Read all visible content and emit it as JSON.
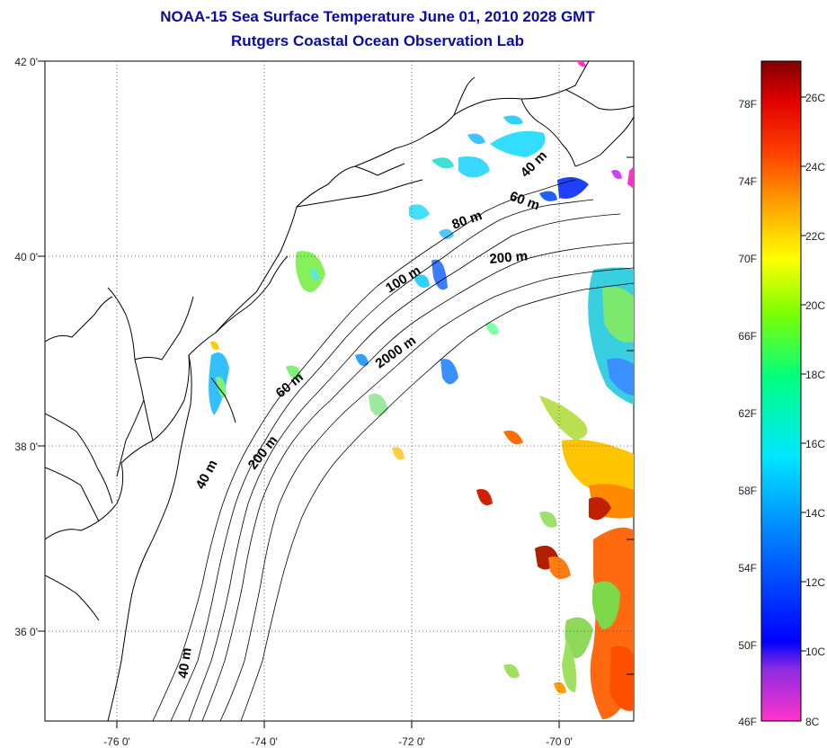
{
  "title": {
    "line1": "NOAA-15 Sea Surface Temperature June 01, 2010 2028 GMT",
    "line2": "Rutgers Coastal Ocean Observation Lab"
  },
  "axes": {
    "lat_labels": [
      "42 0'",
      "40 0'",
      "38 0'",
      "36 0'"
    ],
    "lon_labels": [
      "-76 0'",
      "-74 0'",
      "-72 0'",
      "-70 0'"
    ]
  },
  "isobaths": [
    "40 m",
    "60 m",
    "80 m",
    "200 m",
    "100 m",
    "2000 m",
    "60 m",
    "200 m",
    "40 m",
    "40 m"
  ],
  "colorbar": {
    "fahrenheit_labels": [
      "78F",
      "74F",
      "70F",
      "66F",
      "62F",
      "58F",
      "54F",
      "50F",
      "46F"
    ],
    "celsius_labels": [
      "26C",
      "24C",
      "22C",
      "20C",
      "18C",
      "16C",
      "14C",
      "12C",
      "10C",
      "8C"
    ],
    "colors": [
      "#ff33cc",
      "#8a2be2",
      "#0000ff",
      "#0080ff",
      "#00e5ff",
      "#00ff80",
      "#80ff00",
      "#ffff00",
      "#ffa500",
      "#ff4000",
      "#e00000",
      "#800000"
    ]
  }
}
